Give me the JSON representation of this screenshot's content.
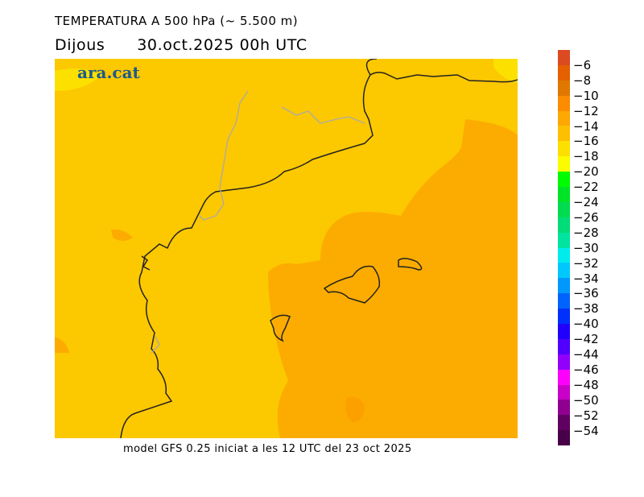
{
  "title": "TEMPERATURA A 500 hPa (~ 5.500 m)",
  "day": "Dijous",
  "date": "30.oct.2025 00h UTC",
  "logo": "ara.cat",
  "footer": "model GFS 0.25 iniciat a les 12 UTC del 23 oct 2025",
  "colorbar": {
    "labels": [
      "−6",
      "−8",
      "−10",
      "−12",
      "−14",
      "−16",
      "−18",
      "−20",
      "−22",
      "−24",
      "−26",
      "−28",
      "−30",
      "−32",
      "−34",
      "−36",
      "−38",
      "−40",
      "−42",
      "−44",
      "−46",
      "−48",
      "−50",
      "−52",
      "−54"
    ],
    "colors": [
      "#dc4a22",
      "#e46000",
      "#e07800",
      "#fc8c00",
      "#fca800",
      "#fcc000",
      "#fce000",
      "#fcfc00",
      "#00fc00",
      "#00e428",
      "#00dc50",
      "#00dc78",
      "#00e4a0",
      "#00ecec",
      "#00c8fc",
      "#0098fc",
      "#0064fc",
      "#0030fc",
      "#2000fc",
      "#5000fc",
      "#9000fc",
      "#fc00fc",
      "#c800c8",
      "#900090",
      "#600060",
      "#480048"
    ]
  },
  "map_colors": {
    "base": "#fcc800",
    "warm": "#fcac00",
    "warmer": "#fca000",
    "cool": "#fce000",
    "coast": "#222222",
    "border": "#aaaaaa"
  }
}
